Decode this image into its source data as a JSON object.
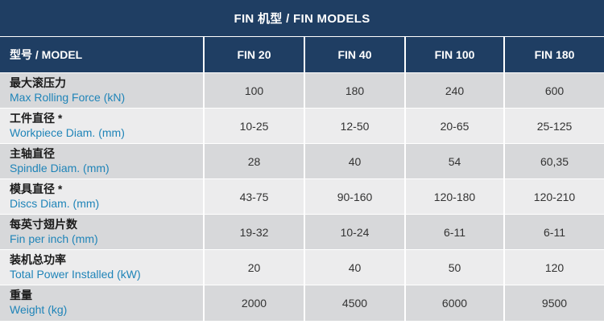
{
  "title": "FIN 机型 / FIN MODELS",
  "header": {
    "label": "型号 / MODEL",
    "models": [
      "FIN 20",
      "FIN 40",
      "FIN 100",
      "FIN 180"
    ]
  },
  "rows": [
    {
      "cn": "最大滚压力",
      "en": "Max Rolling Force (kN)",
      "values": [
        "100",
        "180",
        "240",
        "600"
      ]
    },
    {
      "cn": "工件直径 *",
      "en": "Workpiece Diam. (mm)",
      "values": [
        "10-25",
        "12-50",
        "20-65",
        "25-125"
      ]
    },
    {
      "cn": "主轴直径",
      "en": "Spindle Diam. (mm)",
      "values": [
        "28",
        "40",
        "54",
        "60,35"
      ]
    },
    {
      "cn": "模具直径 *",
      "en": "Discs Diam. (mm)",
      "values": [
        "43-75",
        "90-160",
        "120-180",
        "120-210"
      ]
    },
    {
      "cn": "每英寸翅片数",
      "en": "Fin per inch (mm)",
      "values": [
        "19-32",
        "10-24",
        "6-11",
        "6-11"
      ]
    },
    {
      "cn": "装机总功率",
      "en": "Total Power Installed (kW)",
      "values": [
        "20",
        "40",
        "50",
        "120"
      ]
    },
    {
      "cn": "重量",
      "en": "Weight (kg)",
      "values": [
        "2000",
        "4500",
        "6000",
        "9500"
      ]
    }
  ],
  "colors": {
    "header": "#1f3e63",
    "row_dark": "#d7d8da",
    "row_light": "#ececed",
    "label_en": "#1f84b8"
  }
}
